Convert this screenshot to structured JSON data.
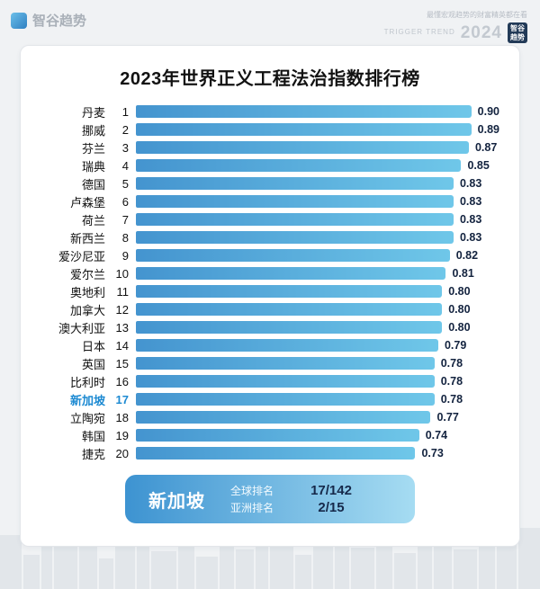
{
  "header": {
    "brand": "智谷趋势"
  },
  "watermark": {
    "line1": "最懂宏观趋势的财富精英都在看",
    "line2": "TRIGGER TREND",
    "year": "2024",
    "badge": "智谷趋势"
  },
  "chart_data": {
    "type": "bar",
    "orientation": "horizontal",
    "title": "2023年世界正义工程法治指数排行榜",
    "categories": [
      "丹麦",
      "挪威",
      "芬兰",
      "瑞典",
      "德国",
      "卢森堡",
      "荷兰",
      "新西兰",
      "爱沙尼亚",
      "爱尔兰",
      "奥地利",
      "加拿大",
      "澳大利亚",
      "日本",
      "英国",
      "比利时",
      "新加坡",
      "立陶宛",
      "韩国",
      "捷克"
    ],
    "ranks": [
      1,
      2,
      3,
      4,
      5,
      6,
      7,
      8,
      9,
      10,
      11,
      12,
      13,
      14,
      15,
      16,
      17,
      18,
      19,
      20
    ],
    "values": [
      0.9,
      0.89,
      0.87,
      0.85,
      0.83,
      0.83,
      0.83,
      0.83,
      0.82,
      0.81,
      0.8,
      0.8,
      0.8,
      0.79,
      0.78,
      0.78,
      0.78,
      0.77,
      0.74,
      0.73
    ],
    "highlight_index": 16,
    "highlight_color": "#1d8ad2",
    "scale_max": 0.95,
    "xlim": [
      0,
      0.95
    ],
    "grid": false,
    "legend": "none",
    "bar_gradient": [
      "#4494cf",
      "#6fc7e9"
    ]
  },
  "callout": {
    "country": "新加坡",
    "gradient": [
      "#3d93d1",
      "#a6dcf2"
    ],
    "rows": [
      {
        "label": "全球排名",
        "value": "17/142"
      },
      {
        "label": "亚洲排名",
        "value": "2/15"
      }
    ]
  }
}
